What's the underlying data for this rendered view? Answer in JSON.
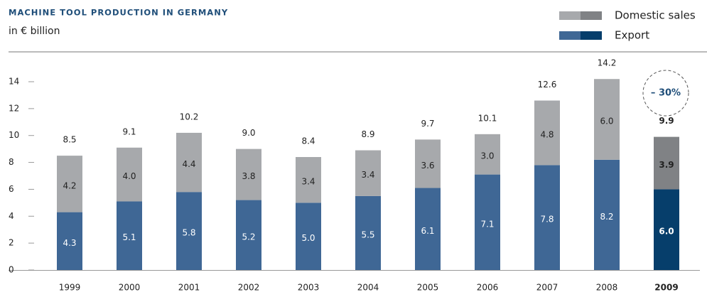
{
  "chart_data": {
    "type": "stacked_bar",
    "title": "MACHINE TOOL PRODUCTION IN GERMANY",
    "subtitle": "in € billion",
    "categories": [
      "1999",
      "2000",
      "2001",
      "2002",
      "2003",
      "2004",
      "2005",
      "2006",
      "2007",
      "2008",
      "2009"
    ],
    "highlight": "2009",
    "series": [
      {
        "name": "Export",
        "color": "#3f6795",
        "highlight_color": "#063e6b",
        "values": [
          4.3,
          5.1,
          5.8,
          5.2,
          5.0,
          5.5,
          6.1,
          7.1,
          7.8,
          8.2,
          6.0
        ],
        "value_labels": [
          "4.3",
          "5.1",
          "5.8",
          "5.2",
          "5.0",
          "5.5",
          "6.1",
          "7.1",
          "7.8",
          "8.2",
          "6.0"
        ]
      },
      {
        "name": "Domestic sales",
        "color": "#a7a9ac",
        "highlight_color": "#808285",
        "values": [
          4.2,
          4.0,
          4.4,
          3.8,
          3.4,
          3.4,
          3.6,
          3.0,
          4.8,
          6.0,
          3.9
        ],
        "value_labels": [
          "4.2",
          "4.0",
          "4.4",
          "3.8",
          "3.4",
          "3.4",
          "3.6",
          "3.0",
          "4.8",
          "6.0",
          "3.9"
        ]
      }
    ],
    "totals": {
      "values": [
        8.5,
        9.1,
        10.2,
        9.0,
        8.4,
        8.9,
        9.7,
        10.1,
        12.6,
        14.2,
        9.9
      ],
      "value_labels": [
        "8.5",
        "9.1",
        "10.2",
        "9.0",
        "8.4",
        "8.9",
        "9.7",
        "10.1",
        "12.6",
        "14.2",
        "9.9"
      ]
    },
    "annotation": "– 30%",
    "ylim": [
      0,
      14
    ],
    "yticks": [
      0,
      2,
      4,
      6,
      8,
      10,
      12,
      14
    ]
  }
}
